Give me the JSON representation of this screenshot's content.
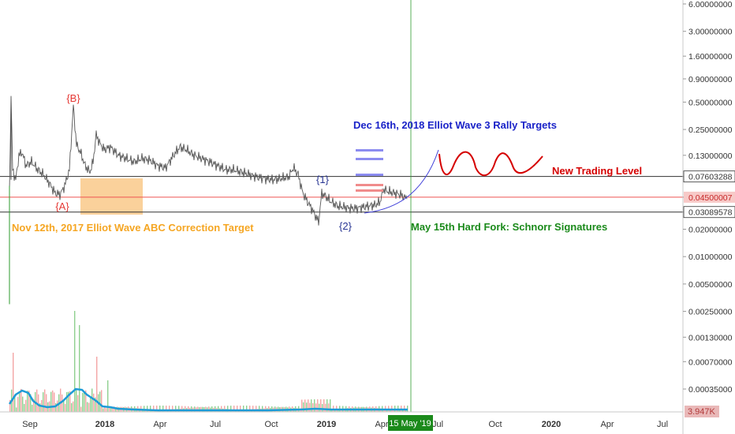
{
  "chart_data": {
    "type": "line",
    "scale": "log",
    "ylim": [
      0.00017,
      6.5
    ],
    "y_ticks": [
      "6.00000000",
      "3.00000000",
      "1.60000000",
      "0.90000000",
      "0.50000000",
      "0.25000000",
      "0.13000000",
      "0.07603288",
      "0.04500007",
      "0.03089578",
      "0.02000000",
      "0.01000000",
      "0.00500000",
      "0.00250000",
      "0.00130000",
      "0.00070000",
      "0.00035000"
    ],
    "x_ticks": [
      "Sep",
      "2018",
      "Apr",
      "Jul",
      "Oct",
      "2019",
      "Apr",
      "Jul",
      "Oct",
      "2020",
      "Apr",
      "Jul"
    ],
    "volume_label": "3.947K",
    "crosshair_date": "15 May '19",
    "levels": [
      {
        "value": 0.07603288,
        "color": "#333333"
      },
      {
        "value": 0.04500007,
        "color": "#ef5350"
      },
      {
        "value": 0.03089578,
        "color": "#333333"
      }
    ],
    "wave_labels": [
      {
        "text": "{B}",
        "color": "#e53935"
      },
      {
        "text": "{A}",
        "color": "#e53935"
      },
      {
        "text": "{1}",
        "color": "#283593"
      },
      {
        "text": "{2}",
        "color": "#283593"
      }
    ],
    "annotations": [
      {
        "text": "Dec 16th, 2018 Elliot Wave 3 Rally Targets",
        "color": "#1a23c8"
      },
      {
        "text": "New Trading Level",
        "color": "#d50000"
      },
      {
        "text": "Nov 12th, 2017 Elliot Wave ABC Correction Target",
        "color": "#f5a623"
      },
      {
        "text": "May 15th Hard Fork: Schnorr Signatures",
        "color": "#1b8a1b"
      }
    ],
    "colors": {
      "price": "#555555",
      "volume_ma": "#1e9bd7",
      "projection": "#3f3fd9",
      "target_bars_blue": "#8c8cf0",
      "target_bars_red": "#f08c8c",
      "zone": "#f9c98a",
      "crosshair": "#2e9b2e"
    }
  }
}
